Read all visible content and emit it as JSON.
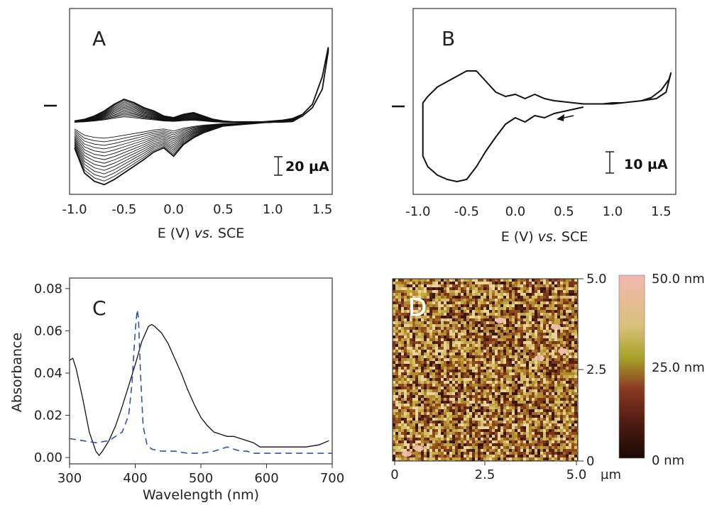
{
  "chart_data": [
    {
      "panel": "A",
      "type": "line",
      "xlabel": "E (V) vs. SCE",
      "x_ticks": [
        "-1.0",
        "-0.5",
        "0.0",
        "0.5",
        "1.0",
        "1.5"
      ],
      "xlim": [
        -1.05,
        1.6
      ],
      "scale_label": "20 µA",
      "series": [
        {
          "x": [
            -1.0,
            -0.9,
            -0.8,
            -0.7,
            -0.6,
            -0.5,
            -0.4,
            -0.3,
            -0.2,
            -0.1,
            0.0,
            0.1,
            0.2,
            0.3,
            0.4,
            0.5,
            0.6,
            0.7,
            0.8,
            0.9,
            1.0,
            1.1,
            1.2,
            1.3,
            1.4,
            1.5,
            1.56
          ],
          "y": [
            2,
            4,
            8,
            14,
            22,
            28,
            24,
            18,
            14,
            8,
            6,
            10,
            12,
            8,
            4,
            2,
            1,
            1,
            1,
            1,
            2,
            3,
            5,
            10,
            22,
            55,
            90
          ]
        },
        {
          "x": [
            1.56,
            1.5,
            1.4,
            1.3,
            1.2,
            1.1,
            1.0,
            0.9,
            0.8,
            0.7,
            0.6,
            0.5,
            0.4,
            0.3,
            0.2,
            0.1,
            0.0,
            -0.1,
            -0.2,
            -0.3,
            -0.4,
            -0.5,
            -0.6,
            -0.7,
            -0.8,
            -0.9,
            -1.0
          ],
          "y": [
            85,
            40,
            18,
            8,
            4,
            2,
            1,
            0,
            -1,
            -2,
            -3,
            -4,
            -8,
            -12,
            -18,
            -26,
            -40,
            -30,
            -35,
            -44,
            -52,
            -60,
            -68,
            -74,
            -70,
            -60,
            -30
          ]
        }
      ]
    },
    {
      "panel": "B",
      "type": "line",
      "xlabel": "E (V) vs. SCE",
      "x_ticks": [
        "-1.0",
        "-0.5",
        "0.0",
        "0.5",
        "1.0",
        "1.5"
      ],
      "xlim": [
        -1.05,
        1.65
      ],
      "scale_label": "10 µA",
      "series": [
        {
          "x": [
            0.7,
            0.8,
            0.9,
            1.0,
            1.1,
            1.2,
            1.3,
            1.4,
            1.5,
            1.58,
            1.6,
            1.55,
            1.45,
            1.3,
            1.2,
            1.1,
            1.0,
            0.9,
            0.8,
            0.7,
            0.6,
            0.5,
            0.4,
            0.3,
            0.2,
            0.1,
            0.0,
            -0.1,
            -0.2,
            -0.3,
            -0.4,
            -0.5,
            -0.6,
            -0.7,
            -0.8,
            -0.9,
            -0.95,
            -0.95,
            -0.9,
            -0.8,
            -0.7,
            -0.6,
            -0.5,
            -0.4,
            -0.3,
            -0.2,
            -0.1,
            0.0,
            0.1,
            0.2,
            0.3,
            0.4,
            0.5,
            0.6,
            0.7
          ],
          "y": [
            -1,
            -1,
            -1,
            0,
            0,
            1,
            2,
            5,
            12,
            22,
            28,
            10,
            4,
            2,
            1,
            0,
            -1,
            -1,
            -1,
            -1,
            0,
            1,
            2,
            4,
            8,
            4,
            8,
            6,
            10,
            20,
            30,
            30,
            25,
            20,
            15,
            6,
            0,
            -50,
            -60,
            -68,
            -72,
            -74,
            -72,
            -60,
            -45,
            -32,
            -20,
            -14,
            -18,
            -12,
            -14,
            -10,
            -8,
            -6,
            -4
          ]
        }
      ]
    },
    {
      "panel": "C",
      "type": "line",
      "xlabel": "Wavelength (nm)",
      "ylabel": "Absorbance",
      "x_ticks": [
        "300",
        "400",
        "500",
        "600",
        "700"
      ],
      "y_ticks": [
        "0.00",
        "0.02",
        "0.04",
        "0.06",
        "0.08"
      ],
      "xlim": [
        300,
        700
      ],
      "ylim": [
        -0.003,
        0.085
      ],
      "series": [
        {
          "style": "solid",
          "color": "#111111",
          "x": [
            300,
            305,
            310,
            320,
            330,
            340,
            345,
            350,
            360,
            370,
            380,
            390,
            400,
            410,
            420,
            425,
            430,
            440,
            450,
            460,
            470,
            480,
            490,
            500,
            510,
            520,
            530,
            540,
            550,
            560,
            570,
            580,
            590,
            600,
            610,
            620,
            640,
            660,
            680,
            695
          ],
          "y": [
            0.046,
            0.047,
            0.042,
            0.028,
            0.012,
            0.003,
            0.001,
            0.003,
            0.008,
            0.015,
            0.024,
            0.034,
            0.044,
            0.055,
            0.062,
            0.063,
            0.062,
            0.059,
            0.054,
            0.047,
            0.04,
            0.032,
            0.025,
            0.019,
            0.015,
            0.012,
            0.011,
            0.01,
            0.01,
            0.009,
            0.008,
            0.007,
            0.005,
            0.005,
            0.005,
            0.005,
            0.005,
            0.005,
            0.006,
            0.008
          ]
        },
        {
          "style": "dashed",
          "color": "#3b4fa5",
          "x": [
            300,
            320,
            340,
            360,
            380,
            390,
            395,
            400,
            403,
            405,
            408,
            412,
            418,
            425,
            440,
            460,
            480,
            500,
            520,
            530,
            540,
            550,
            560,
            570,
            580,
            600,
            640,
            680,
            700
          ],
          "y": [
            0.009,
            0.008,
            0.007,
            0.008,
            0.012,
            0.02,
            0.035,
            0.06,
            0.07,
            0.066,
            0.04,
            0.015,
            0.006,
            0.004,
            0.003,
            0.003,
            0.002,
            0.002,
            0.003,
            0.004,
            0.005,
            0.004,
            0.003,
            0.003,
            0.002,
            0.002,
            0.002,
            0.002,
            0.002
          ]
        }
      ]
    },
    {
      "panel": "D",
      "type": "heatmap",
      "x_ticks": [
        "0",
        "2.5",
        "5.0"
      ],
      "x_unit": "µm",
      "y_ticks": [
        "0",
        "2.5",
        "5.0"
      ],
      "colorbar_labels": [
        "50.0 nm",
        "25.0 nm",
        "0 nm"
      ],
      "colorbar_colors": [
        "#f2b8b0",
        "#d8c07a",
        "#a8a22a",
        "#8a3a22",
        "#4a1a10",
        "#1a0a06"
      ]
    }
  ],
  "panel_labels": {
    "A": "A",
    "B": "B",
    "C": "C",
    "D": "D"
  },
  "texts": {
    "a_xlabel_pre": "E (V) ",
    "a_xlabel_it": "vs.",
    "a_xlabel_post": " SCE",
    "b_xlabel_pre": "E (V) ",
    "b_xlabel_it": "vs.",
    "b_xlabel_post": " SCE",
    "a_scale": "20 µA",
    "b_scale": "10 µA",
    "c_xlabel": "Wavelength (nm)",
    "c_ylabel": "Absorbance",
    "d_unit": "µm"
  }
}
